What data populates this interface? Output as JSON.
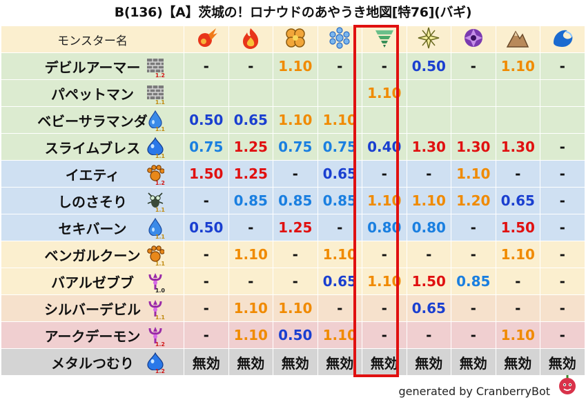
{
  "title": "B(136)【A】茨城の！ロナウドのあやうき地図[特76](バギ)",
  "header": {
    "name_col": "モンスター名"
  },
  "elements": [
    {
      "icon": "fire-ball-icon"
    },
    {
      "icon": "flame-icon"
    },
    {
      "icon": "clover-explosion-icon"
    },
    {
      "icon": "ice-snowflake-icon"
    },
    {
      "icon": "tornado-wind-icon"
    },
    {
      "icon": "lightning-star-icon"
    },
    {
      "icon": "dark-spiral-icon"
    },
    {
      "icon": "rock-mountain-icon"
    },
    {
      "icon": "water-wave-icon"
    }
  ],
  "highlighted_column": 4,
  "colors": {
    "green_row": "#dcebd0",
    "blue_row": "#cfe0f2",
    "yellow_row": "#fbefcf",
    "peach_row": "#f6e1cc",
    "pink_row": "#f0cfd0",
    "gray_row": "#d4d4d4",
    "header_row": "#fbefcf",
    "red": "#e01010",
    "orange": "#f08a00",
    "blue": "#1a3fd0",
    "lightblue": "#1a7fe0"
  },
  "rows": [
    {
      "name": "デビルアーマー",
      "icon": "brick-wall-icon",
      "level": "1.2",
      "tone": "green",
      "cells": [
        {
          "v": "-",
          "c": "dash"
        },
        {
          "v": "-",
          "c": "dash"
        },
        {
          "v": "1.10",
          "c": "orange"
        },
        {
          "v": "-",
          "c": "dash"
        },
        {
          "v": "-",
          "c": "dash"
        },
        {
          "v": "0.50",
          "c": "blue"
        },
        {
          "v": "-",
          "c": "dash"
        },
        {
          "v": "1.10",
          "c": "orange"
        },
        {
          "v": "-",
          "c": "dash"
        }
      ]
    },
    {
      "name": "パペットマン",
      "icon": "brick-wall-icon",
      "level": "1.1",
      "tone": "green",
      "cells": [
        {
          "v": "",
          "c": "dash"
        },
        {
          "v": "",
          "c": "dash"
        },
        {
          "v": "",
          "c": "dash"
        },
        {
          "v": "",
          "c": "dash"
        },
        {
          "v": "1.10",
          "c": "orange"
        },
        {
          "v": "",
          "c": "dash"
        },
        {
          "v": "",
          "c": "dash"
        },
        {
          "v": "",
          "c": "dash"
        },
        {
          "v": "",
          "c": "dash"
        }
      ]
    },
    {
      "name": "ベビーサラマンダ",
      "icon": "water-drop-icon",
      "level": "1.1",
      "tone": "green",
      "cells": [
        {
          "v": "0.50",
          "c": "blue"
        },
        {
          "v": "0.65",
          "c": "blue"
        },
        {
          "v": "1.10",
          "c": "orange"
        },
        {
          "v": "1.10",
          "c": "orange"
        },
        {
          "v": "",
          "c": "dash"
        },
        {
          "v": "",
          "c": "dash"
        },
        {
          "v": "",
          "c": "dash"
        },
        {
          "v": "",
          "c": "dash"
        },
        {
          "v": "",
          "c": "dash"
        }
      ]
    },
    {
      "name": "スライムブレス",
      "icon": "slime-icon",
      "level": "1.1",
      "tone": "green",
      "cells": [
        {
          "v": "0.75",
          "c": "lightblue"
        },
        {
          "v": "1.25",
          "c": "red"
        },
        {
          "v": "0.75",
          "c": "lightblue"
        },
        {
          "v": "0.75",
          "c": "lightblue"
        },
        {
          "v": "0.40",
          "c": "blue"
        },
        {
          "v": "1.30",
          "c": "red"
        },
        {
          "v": "1.30",
          "c": "red"
        },
        {
          "v": "1.30",
          "c": "red"
        },
        {
          "v": "-",
          "c": "dash"
        }
      ]
    },
    {
      "name": "イエティ",
      "icon": "paw-icon",
      "level": "1.2",
      "tone": "blue",
      "cells": [
        {
          "v": "1.50",
          "c": "red"
        },
        {
          "v": "1.25",
          "c": "red"
        },
        {
          "v": "-",
          "c": "dash"
        },
        {
          "v": "0.65",
          "c": "blue"
        },
        {
          "v": "-",
          "c": "dash"
        },
        {
          "v": "-",
          "c": "dash"
        },
        {
          "v": "1.10",
          "c": "orange"
        },
        {
          "v": "-",
          "c": "dash"
        },
        {
          "v": "-",
          "c": "dash"
        }
      ]
    },
    {
      "name": "しのさそり",
      "icon": "insect-icon",
      "level": "1.1",
      "tone": "blue",
      "cells": [
        {
          "v": "-",
          "c": "dash"
        },
        {
          "v": "0.85",
          "c": "lightblue"
        },
        {
          "v": "0.85",
          "c": "lightblue"
        },
        {
          "v": "0.85",
          "c": "lightblue"
        },
        {
          "v": "1.10",
          "c": "orange"
        },
        {
          "v": "1.10",
          "c": "orange"
        },
        {
          "v": "1.20",
          "c": "orange"
        },
        {
          "v": "0.65",
          "c": "blue"
        },
        {
          "v": "-",
          "c": "dash"
        }
      ]
    },
    {
      "name": "セキバーン",
      "icon": "water-drop-icon",
      "level": "1.1",
      "tone": "blue",
      "cells": [
        {
          "v": "0.50",
          "c": "blue"
        },
        {
          "v": "-",
          "c": "dash"
        },
        {
          "v": "1.25",
          "c": "red"
        },
        {
          "v": "-",
          "c": "dash"
        },
        {
          "v": "0.80",
          "c": "lightblue"
        },
        {
          "v": "0.80",
          "c": "lightblue"
        },
        {
          "v": "-",
          "c": "dash"
        },
        {
          "v": "1.50",
          "c": "red"
        },
        {
          "v": "-",
          "c": "dash"
        }
      ]
    },
    {
      "name": "ベンガルクーン",
      "icon": "paw-icon",
      "level": "1.1",
      "tone": "yellow",
      "cells": [
        {
          "v": "-",
          "c": "dash"
        },
        {
          "v": "1.10",
          "c": "orange"
        },
        {
          "v": "-",
          "c": "dash"
        },
        {
          "v": "1.10",
          "c": "orange"
        },
        {
          "v": "-",
          "c": "dash"
        },
        {
          "v": "-",
          "c": "dash"
        },
        {
          "v": "-",
          "c": "dash"
        },
        {
          "v": "1.10",
          "c": "orange"
        },
        {
          "v": "-",
          "c": "dash"
        }
      ]
    },
    {
      "name": "バアルゼブブ",
      "icon": "demon-trident-icon",
      "level": "1.0",
      "tone": "yellow",
      "cells": [
        {
          "v": "-",
          "c": "dash"
        },
        {
          "v": "-",
          "c": "dash"
        },
        {
          "v": "-",
          "c": "dash"
        },
        {
          "v": "0.65",
          "c": "blue"
        },
        {
          "v": "1.10",
          "c": "orange"
        },
        {
          "v": "1.50",
          "c": "red"
        },
        {
          "v": "0.85",
          "c": "lightblue"
        },
        {
          "v": "-",
          "c": "dash"
        },
        {
          "v": "-",
          "c": "dash"
        }
      ]
    },
    {
      "name": "シルバーデビル",
      "icon": "demon-trident-icon",
      "level": "1.1",
      "tone": "peach",
      "cells": [
        {
          "v": "-",
          "c": "dash"
        },
        {
          "v": "1.10",
          "c": "orange"
        },
        {
          "v": "1.10",
          "c": "orange"
        },
        {
          "v": "-",
          "c": "dash"
        },
        {
          "v": "-",
          "c": "dash"
        },
        {
          "v": "0.65",
          "c": "blue"
        },
        {
          "v": "-",
          "c": "dash"
        },
        {
          "v": "-",
          "c": "dash"
        },
        {
          "v": "-",
          "c": "dash"
        }
      ]
    },
    {
      "name": "アークデーモン",
      "icon": "demon-trident-icon",
      "level": "1.2",
      "tone": "pink",
      "cells": [
        {
          "v": "-",
          "c": "dash"
        },
        {
          "v": "1.10",
          "c": "orange"
        },
        {
          "v": "0.50",
          "c": "blue"
        },
        {
          "v": "1.10",
          "c": "orange"
        },
        {
          "v": "-",
          "c": "dash"
        },
        {
          "v": "-",
          "c": "dash"
        },
        {
          "v": "-",
          "c": "dash"
        },
        {
          "v": "1.10",
          "c": "orange"
        },
        {
          "v": "-",
          "c": "dash"
        }
      ]
    },
    {
      "name": "メタルつむり",
      "icon": "slime-icon",
      "level": "1.2",
      "tone": "gray",
      "cells": [
        {
          "v": "無効",
          "c": "black"
        },
        {
          "v": "無効",
          "c": "black"
        },
        {
          "v": "無効",
          "c": "black"
        },
        {
          "v": "無効",
          "c": "black"
        },
        {
          "v": "無効",
          "c": "black"
        },
        {
          "v": "無効",
          "c": "black"
        },
        {
          "v": "無効",
          "c": "black"
        },
        {
          "v": "無効",
          "c": "black"
        },
        {
          "v": "無効",
          "c": "black"
        }
      ]
    }
  ],
  "footer": {
    "text": "generated by CranberryBot",
    "logo_icon": "cranberry-bot-icon"
  }
}
